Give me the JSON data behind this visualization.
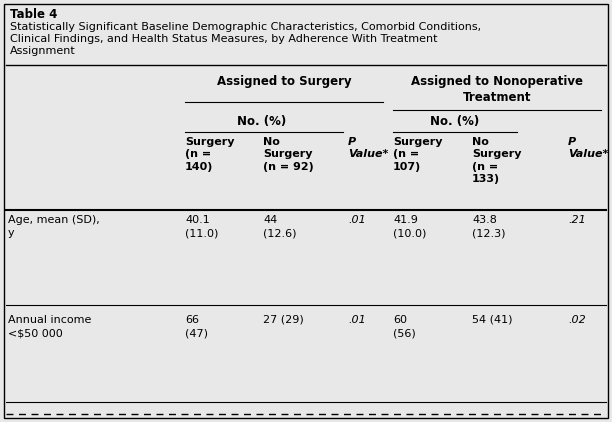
{
  "table_label": "Table 4",
  "title_line1": "Statistically Significant Baseline Demographic Characteristics, Comorbid Conditions,",
  "title_line2": "Clinical Findings, and Health Status Measures, by Adherence With Treatment",
  "title_line3": "Assignment",
  "col_group1": "Assigned to Surgery",
  "col_group2": "Assigned to Nonoperative\nTreatment",
  "subgroup_label": "No. (%)",
  "col_headers": [
    "Surgery\n(n =\n140)",
    "No\nSurgery\n(n = 92)",
    "P\nValue*",
    "Surgery\n(n =\n107)",
    "No\nSurgery\n(n =\n133)",
    "P\nValue*"
  ],
  "rows": [
    {
      "label": "Age, mean (SD),\ny",
      "values": [
        "40.1\n(11.0)",
        "44\n(12.6)",
        ".01",
        "41.9\n(10.0)",
        "43.8\n(12.3)",
        ".21"
      ]
    },
    {
      "label": "Annual income\n<$50 000",
      "values": [
        "66\n(47)",
        "27 (29)",
        ".01",
        "60\n(56)",
        "54 (41)",
        ".02"
      ]
    }
  ],
  "bg_color": "#e8e8e8",
  "text_color": "#000000",
  "font_size": 8.5,
  "p_italic_indices": [
    2,
    5
  ]
}
